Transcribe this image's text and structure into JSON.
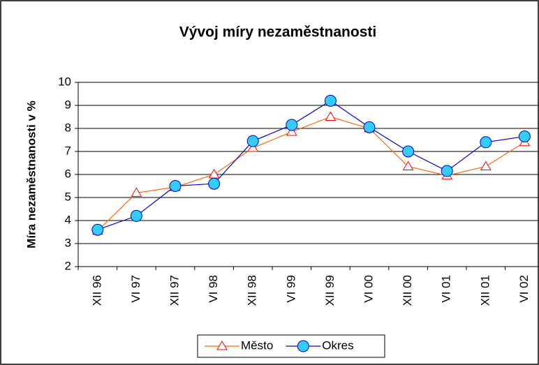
{
  "chart_data": {
    "type": "line",
    "title": "Vývoj míry nezaměstnanosti",
    "y_label": "Míra nezaměstnanosti v %",
    "categories": [
      "XII 96",
      "VI 97",
      "XII 97",
      "VI 98",
      "XII 98",
      "VI 99",
      "XII 99",
      "VI 00",
      "XII 00",
      "VI 01",
      "XII 01",
      "VI 02"
    ],
    "series": [
      {
        "name": "Město",
        "color": "#ff6600",
        "values": [
          3.55,
          5.2,
          5.45,
          6.0,
          7.15,
          7.85,
          8.5,
          8.0,
          6.35,
          5.95,
          6.35,
          7.4
        ]
      },
      {
        "name": "Okres",
        "color": "#0000cc",
        "values": [
          3.6,
          4.2,
          5.5,
          5.6,
          7.45,
          8.15,
          9.2,
          8.05,
          7.0,
          6.15,
          7.4,
          7.65
        ]
      }
    ],
    "ylim": [
      2,
      10
    ],
    "yticks": [
      2,
      3,
      4,
      5,
      6,
      7,
      8,
      9,
      10
    ],
    "grid": true,
    "legend": "bottom"
  }
}
